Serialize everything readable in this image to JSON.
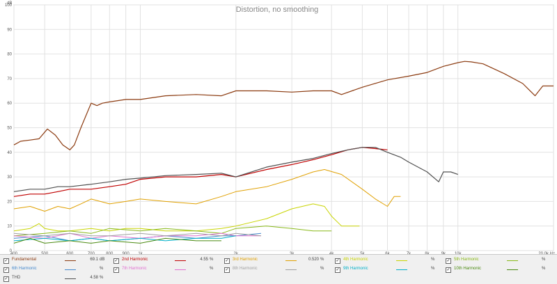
{
  "chart_data": {
    "type": "line",
    "title": "Distortion, no smoothing",
    "ylabel": "dB",
    "xunit": "Hz",
    "xscale": "log",
    "xlim": [
      400,
      20000
    ],
    "ylim": [
      0,
      100
    ],
    "grid": true,
    "yticks": [
      "0",
      "10",
      "20",
      "30",
      "40",
      "50",
      "60",
      "70",
      "80",
      "90",
      "100"
    ],
    "xticks": [
      {
        "v": 400,
        "label": "400"
      },
      {
        "v": 500,
        "label": "500"
      },
      {
        "v": 600,
        "label": "600"
      },
      {
        "v": 700,
        "label": "700"
      },
      {
        "v": 800,
        "label": "800"
      },
      {
        "v": 900,
        "label": "900"
      },
      {
        "v": 1000,
        "label": "1k"
      },
      {
        "v": 2000,
        "label": "2k"
      },
      {
        "v": 3000,
        "label": "3k"
      },
      {
        "v": 4000,
        "label": "4k"
      },
      {
        "v": 5000,
        "label": "5k"
      },
      {
        "v": 6000,
        "label": "6k"
      },
      {
        "v": 7000,
        "label": "7k"
      },
      {
        "v": 8000,
        "label": "8k"
      },
      {
        "v": 9000,
        "label": "9k"
      },
      {
        "v": 10000,
        "label": "10k"
      },
      {
        "v": 20000,
        "label": "20.0k Hz"
      }
    ],
    "series": [
      {
        "name": "Fundamental",
        "color": "#8b3a0f",
        "width": 1.2,
        "x": [
          400,
          420,
          450,
          480,
          510,
          540,
          570,
          600,
          620,
          650,
          700,
          730,
          760,
          800,
          900,
          1000,
          1200,
          1500,
          1800,
          2000,
          2500,
          3000,
          3500,
          4000,
          4300,
          5000,
          6000,
          7000,
          8000,
          9000,
          10000,
          10500,
          11000,
          12000,
          14000,
          16000,
          17500,
          18500,
          20000
        ],
        "y": [
          43,
          44.5,
          45,
          45.5,
          49.5,
          47,
          43,
          41,
          43,
          50,
          60,
          59,
          60,
          60.5,
          61.5,
          61.5,
          63,
          63.5,
          63,
          65,
          65,
          64.5,
          65,
          65,
          63.5,
          66.5,
          69.5,
          71,
          72.5,
          75,
          76.5,
          77,
          76.8,
          76,
          72,
          68,
          63,
          67,
          67
        ]
      },
      {
        "name": "2nd Harmonic",
        "value": "4.55",
        "unit": "%",
        "color": "#c00000",
        "width": 1.2,
        "x": [
          400,
          450,
          500,
          550,
          600,
          700,
          800,
          900,
          1000,
          1200,
          1500,
          1800,
          2000,
          2500,
          3000,
          3500,
          4000,
          4500,
          5000,
          5500,
          6000
        ],
        "y": [
          22,
          23,
          23,
          24,
          25,
          25,
          26,
          27,
          29,
          30,
          30,
          31,
          30,
          33,
          35,
          37,
          39,
          41,
          42,
          41.5,
          41
        ]
      },
      {
        "name": "3rd Harmonic",
        "value": "0.520",
        "unit": "%",
        "color": "#e0a000",
        "width": 1,
        "x": [
          400,
          450,
          500,
          550,
          600,
          650,
          700,
          800,
          900,
          1000,
          1200,
          1500,
          1800,
          2000,
          2500,
          3000,
          3500,
          3800,
          4300,
          5000,
          5500,
          6000,
          6300,
          6600
        ],
        "y": [
          17,
          18,
          16,
          18,
          17,
          19,
          21,
          19,
          20,
          21,
          20,
          19,
          22,
          24,
          26,
          29,
          32,
          33,
          31,
          25,
          21,
          18,
          22,
          22
        ]
      },
      {
        "name": "4th Harmonic",
        "color": "#c8d400",
        "width": 1,
        "x": [
          400,
          450,
          480,
          500,
          550,
          600,
          700,
          800,
          900,
          1000,
          1200,
          1500,
          1800,
          2000,
          2500,
          3000,
          3500,
          3800,
          4000,
          4300,
          4600,
          4900
        ],
        "y": [
          8,
          9,
          11,
          9,
          8,
          8,
          9,
          8,
          9,
          9,
          8,
          8,
          9,
          10,
          13,
          17,
          19,
          18,
          14,
          10,
          10,
          10
        ]
      },
      {
        "name": "5th Harmonic",
        "color": "#88b818",
        "width": 1,
        "x": [
          400,
          500,
          600,
          700,
          800,
          1000,
          1200,
          1500,
          1800,
          2000,
          2500,
          3000,
          3500,
          4000
        ],
        "y": [
          6,
          7,
          8,
          7,
          9,
          8,
          9,
          8,
          7,
          9,
          10,
          9,
          8,
          8
        ]
      },
      {
        "name": "6th Harmonic",
        "color": "#4488cc",
        "width": 1,
        "x": [
          400,
          500,
          600,
          700,
          800,
          1000,
          1200,
          1500,
          1800,
          2000,
          2400
        ],
        "y": [
          5,
          6,
          4,
          5,
          4,
          5,
          6,
          5,
          6,
          6,
          7
        ]
      },
      {
        "name": "7th Harmonic",
        "color": "#e070d0",
        "width": 1,
        "x": [
          400,
          500,
          600,
          700,
          800,
          1000,
          1200,
          1500,
          1800,
          2000,
          2400
        ],
        "y": [
          6,
          5,
          7,
          5,
          6,
          5,
          6,
          6,
          7,
          6,
          6
        ]
      },
      {
        "name": "8th Harmonic",
        "color": "#a0a0a0",
        "width": 1,
        "x": [
          400,
          500,
          600,
          700,
          800,
          1000,
          1200,
          1500,
          1800,
          2000,
          2400
        ],
        "y": [
          7,
          6,
          7,
          6,
          6,
          7,
          6,
          7,
          6,
          7,
          6
        ]
      },
      {
        "name": "9th Harmonic",
        "color": "#00b0c8",
        "width": 1,
        "x": [
          400,
          500,
          600,
          700,
          800,
          1000,
          1200,
          1500,
          1800,
          2000
        ],
        "y": [
          4,
          5,
          4,
          5,
          4,
          5,
          4,
          5,
          5,
          6
        ]
      },
      {
        "name": "10th Harmonic",
        "color": "#4a8a10",
        "width": 1,
        "x": [
          400,
          450,
          500,
          600,
          700,
          800,
          1000,
          1200,
          1500,
          1800
        ],
        "y": [
          3,
          5,
          3,
          4,
          3,
          4,
          3,
          5,
          4,
          4
        ]
      },
      {
        "name": "THD",
        "value": "4.58",
        "unit": "%",
        "color": "#505050",
        "width": 1.2,
        "x": [
          400,
          450,
          500,
          550,
          600,
          700,
          800,
          900,
          1000,
          1200,
          1500,
          1800,
          2000,
          2500,
          3000,
          3500,
          4000,
          4500,
          5000,
          5500,
          6000,
          6600,
          7000,
          8000,
          8700,
          9000,
          9500,
          10000
        ],
        "y": [
          24,
          25,
          25,
          26,
          26,
          27,
          28,
          29,
          29.5,
          30.5,
          31,
          31.5,
          30,
          34,
          36,
          37.5,
          39.5,
          41,
          42,
          42,
          40,
          38,
          36,
          32,
          28,
          32,
          32,
          31
        ]
      }
    ]
  },
  "legend": [
    {
      "name": "Fundamental",
      "value": "69.1",
      "unit": "dB",
      "color": "#8b3a0f"
    },
    {
      "name": "2nd Harmonic",
      "value": "4.55",
      "unit": "%",
      "color": "#c00000"
    },
    {
      "name": "3rd Harmonic",
      "value": "0.520",
      "unit": "%",
      "color": "#e0a000"
    },
    {
      "name": "4th Harmonic",
      "value": "",
      "unit": "%",
      "color": "#c8d400"
    },
    {
      "name": "5th Harmonic",
      "value": "",
      "unit": "%",
      "color": "#88b818"
    },
    {
      "name": "6th Harmonic",
      "value": "",
      "unit": "%",
      "color": "#4488cc"
    },
    {
      "name": "7th Harmonic",
      "value": "",
      "unit": "%",
      "color": "#e070d0"
    },
    {
      "name": "8th Harmonic",
      "value": "",
      "unit": "%",
      "color": "#a0a0a0"
    },
    {
      "name": "9th Harmonic",
      "value": "",
      "unit": "%",
      "color": "#00b0c8"
    },
    {
      "name": "10th Harmonic",
      "value": "",
      "unit": "%",
      "color": "#4a8a10"
    },
    {
      "name": "THD",
      "value": "4.58",
      "unit": "%",
      "color": "#505050"
    }
  ]
}
